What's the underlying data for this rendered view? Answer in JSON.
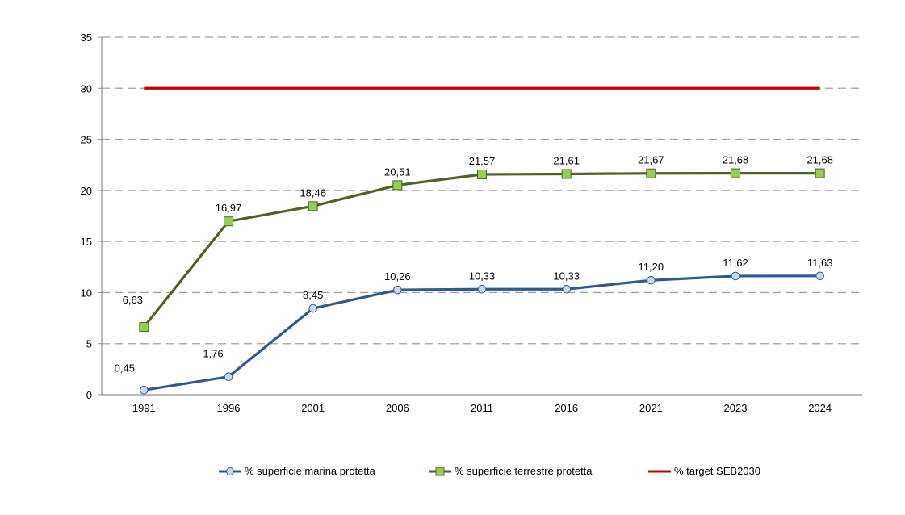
{
  "chart_data": {
    "type": "line",
    "title": "",
    "xlabel": "",
    "ylabel": "",
    "categories": [
      "1991",
      "1996",
      "2001",
      "2006",
      "2011",
      "2016",
      "2021",
      "2023",
      "2024"
    ],
    "ylim": [
      0,
      35
    ],
    "yticks": [
      0,
      5,
      10,
      15,
      20,
      25,
      30,
      35
    ],
    "grid": true,
    "legend_position": "bottom",
    "series": [
      {
        "name": "% superficie marina protetta",
        "values": [
          0.45,
          1.76,
          8.45,
          10.26,
          10.33,
          10.33,
          11.2,
          11.62,
          11.63
        ],
        "labels": [
          "0,45",
          "1,76",
          "8,45",
          "10,26",
          "10,33",
          "10,33",
          "11,20",
          "11,62",
          "11,63"
        ],
        "color": "#2E5A8E",
        "marker": "circle",
        "marker_fill": "#C5D9F1"
      },
      {
        "name": "% superficie terrestre protetta",
        "values": [
          6.63,
          16.97,
          18.46,
          20.51,
          21.57,
          21.61,
          21.67,
          21.68,
          21.68
        ],
        "labels": [
          "6,63",
          "16,97",
          "18,46",
          "20,51",
          "21,57",
          "21,61",
          "21,67",
          "21,68",
          "21,68"
        ],
        "color": "#4F6228",
        "marker": "square",
        "marker_fill": "#92D050"
      },
      {
        "name": "% target SEB2030",
        "values": [
          30,
          30,
          30,
          30,
          30,
          30,
          30,
          30,
          30
        ],
        "labels": [],
        "color": "#C00000",
        "marker": "none"
      }
    ]
  }
}
